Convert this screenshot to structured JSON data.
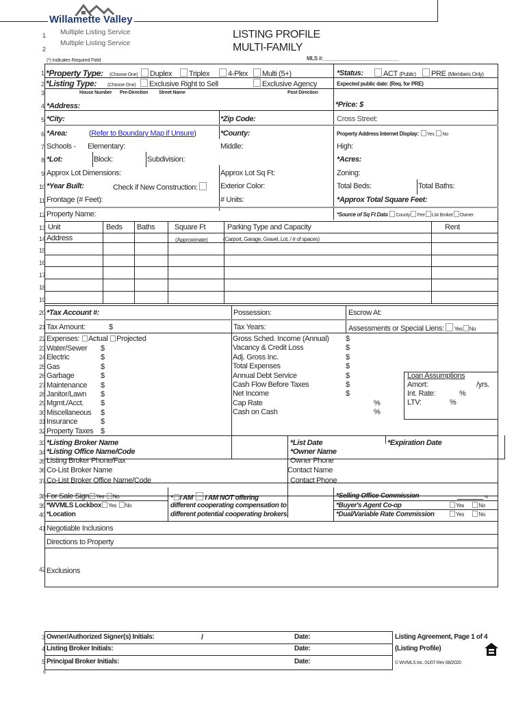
{
  "header": {
    "logo_name": "Willamette Valley",
    "logo_sub": "Multiple Listing Service",
    "logo_sub2": "Multiple Listing Service",
    "title_line1": "LISTING PROFILE",
    "title_line2": "MULTI-FAMILY",
    "required_note": "(*) Indicates Required Field",
    "mls_label": "MLS #:___________________________"
  },
  "line_numbers": [
    "1",
    "2",
    "3",
    "4",
    "5",
    "6",
    "7",
    "8",
    "9",
    "10",
    "11",
    "12",
    "13",
    "14",
    "15",
    "16",
    "17",
    "18",
    "19",
    "20",
    "21",
    "22",
    "23",
    "24",
    "25",
    "26",
    "27",
    "28",
    "29",
    "30",
    "31",
    "32",
    "33",
    "34",
    "35",
    "36",
    "37",
    "38",
    "39",
    "40",
    "41",
    "42"
  ],
  "property": {
    "property_type": "*Property Type:",
    "choose_one": "(Choose One)",
    "types": [
      "Duplex",
      "Triplex",
      "4-Plex",
      "Multi (5+)"
    ],
    "status": "*Status:",
    "act": "ACT",
    "act_note": "(Public)",
    "pre": "PRE",
    "pre_note": "(Members Only)",
    "listing_type": "*Listing Type:",
    "listing_types": [
      "Exclusive Right to Sell",
      "Exclusive Agency"
    ],
    "expected_date": "Expected public date: (Req. for PRE)",
    "house_number": "House Number",
    "pre_direction": "Pre-Direction",
    "street_name": "Street Name",
    "post_direction": "Post Direction",
    "address": "*Address:",
    "price": "*Price:  $",
    "city": "*City:",
    "zip": "*Zip Code:",
    "cross_street": "Cross Street:",
    "area": "*Area:",
    "area_link": "Refer to Boundary Map if Unsure",
    "county": "*County:",
    "internet_display": "Property Address Internet Display:",
    "yes": "Yes",
    "no": "No",
    "schools": "Schools -",
    "elementary": "Elementary:",
    "middle": "Middle:",
    "high": "High:",
    "lot": "*Lot:",
    "block": "Block:",
    "subdivision": "Subdivision:",
    "acres": "*Acres:",
    "lot_dimensions": "Approx Lot Dimensions:",
    "lot_sqft": "Approx Lot Sq Ft:",
    "zoning": "Zoning:",
    "year_built": "*Year Built:",
    "new_construction": "Check if New Construction:",
    "exterior_color": "Exterior Color:",
    "total_beds": "Total Beds:",
    "total_baths": "Total Baths:",
    "frontage": "Frontage (# Feet):",
    "units": "# Units:",
    "total_sqft": "*Approx Total Square Feet:",
    "property_name": "Property Name:",
    "sqft_source": "*Source of Sq Ft Data",
    "sqft_sources": [
      "County",
      "Fee",
      "List Broker",
      "Owner"
    ]
  },
  "units_table": {
    "headers": [
      "Unit",
      "Beds",
      "Baths",
      "Square Ft",
      "Parking Type and Capacity",
      "Rent"
    ],
    "address": "Address",
    "approximate": "(Approximate)",
    "parking_note": "(Carport, Garage, Gravel, Lot, / # of spaces)"
  },
  "tax": {
    "tax_account": "*Tax Account #:",
    "possession": "Possession:",
    "escrow": "Escrow At:",
    "tax_amount": "Tax Amount:",
    "dollar": "$",
    "tax_years": "Tax Years:",
    "assessments": "Assessments or Special Liens:",
    "yes": "Yes",
    "no": "No"
  },
  "expenses": {
    "label": "Expenses:",
    "actual": "Actual",
    "projected": "Projected",
    "items": [
      "Water/Sewer",
      "Electric",
      "Gas",
      "Garbage",
      "Maintenance",
      "Janitor/Lawn",
      "Mgmt./Acct.",
      "Miscellaneous",
      "Insurance",
      "Property Taxes"
    ],
    "income_items": [
      "Gross Sched. Income (Annual)",
      "Vacancy & Credit Loss",
      "Adj. Gross Inc.",
      "Total Expenses",
      "Annual Debt Service",
      "Cash Flow Before Taxes",
      "Net Income"
    ],
    "percent_items": [
      "Cap Rate",
      "Cash on Cash"
    ],
    "dollar": "$",
    "percent": "%",
    "loan_title": "Loan Assumptions",
    "amort": "Amort:",
    "yrs": "/yrs.",
    "int_rate": "Int. Rate:",
    "ltv": "LTV:"
  },
  "broker": {
    "listing_broker": "*Listing Broker Name",
    "list_date": "*List Date",
    "expiration": "*Expiration Date",
    "listing_office": "*Listing Office Name/Code",
    "owner_name": "*Owner Name",
    "broker_phone": "Listing Broker Phone/Fax",
    "owner_phone": "Owner Phone",
    "colist_broker": "Co-List Broker Name",
    "contact_name": "Contact Name",
    "colist_office": "Co-List Broker Office Name/Code",
    "contact_phone": "Contact Phone",
    "sale_sign": "For Sale Sign",
    "lockbox": "*WVMLS Lockbox",
    "location": "*Location",
    "yes": "Yes",
    "no": "No",
    "i_am": "I AM",
    "i_am_not": "I AM NOT  offering",
    "comp_line2": "different cooperating compensation to",
    "comp_line3": "different potential cooperating brokers.",
    "selling_commission": "*Selling Office Commission",
    "buyers_coop": "*Buyer's Agent Co-op",
    "dual_rate": "*Dual/Variable Rate Commission",
    "percent": "%"
  },
  "other": {
    "inclusions": "Negotiable Inclusions",
    "directions": "Directions to Property",
    "exclusions": "Exclusions"
  },
  "footer": {
    "nums": [
      "3",
      "4",
      "5",
      "6"
    ],
    "owner_initials": "Owner/Authorized Signer(s) Initials:",
    "slash": "/",
    "broker_initials": "Listing Broker Initials:",
    "principal_initials": "Principal Broker Initials:",
    "date": "Date:",
    "page_label": "Listing Agreement, Page 1 of 4",
    "profile": "(Listing Profile)",
    "copyright": "© WVMLS Inc. 01/07  Rev 08/2020"
  },
  "colors": {
    "logo": "#1f3a6e",
    "link": "#2222cc",
    "rule": "#222222",
    "grey_rule": "#999999"
  }
}
